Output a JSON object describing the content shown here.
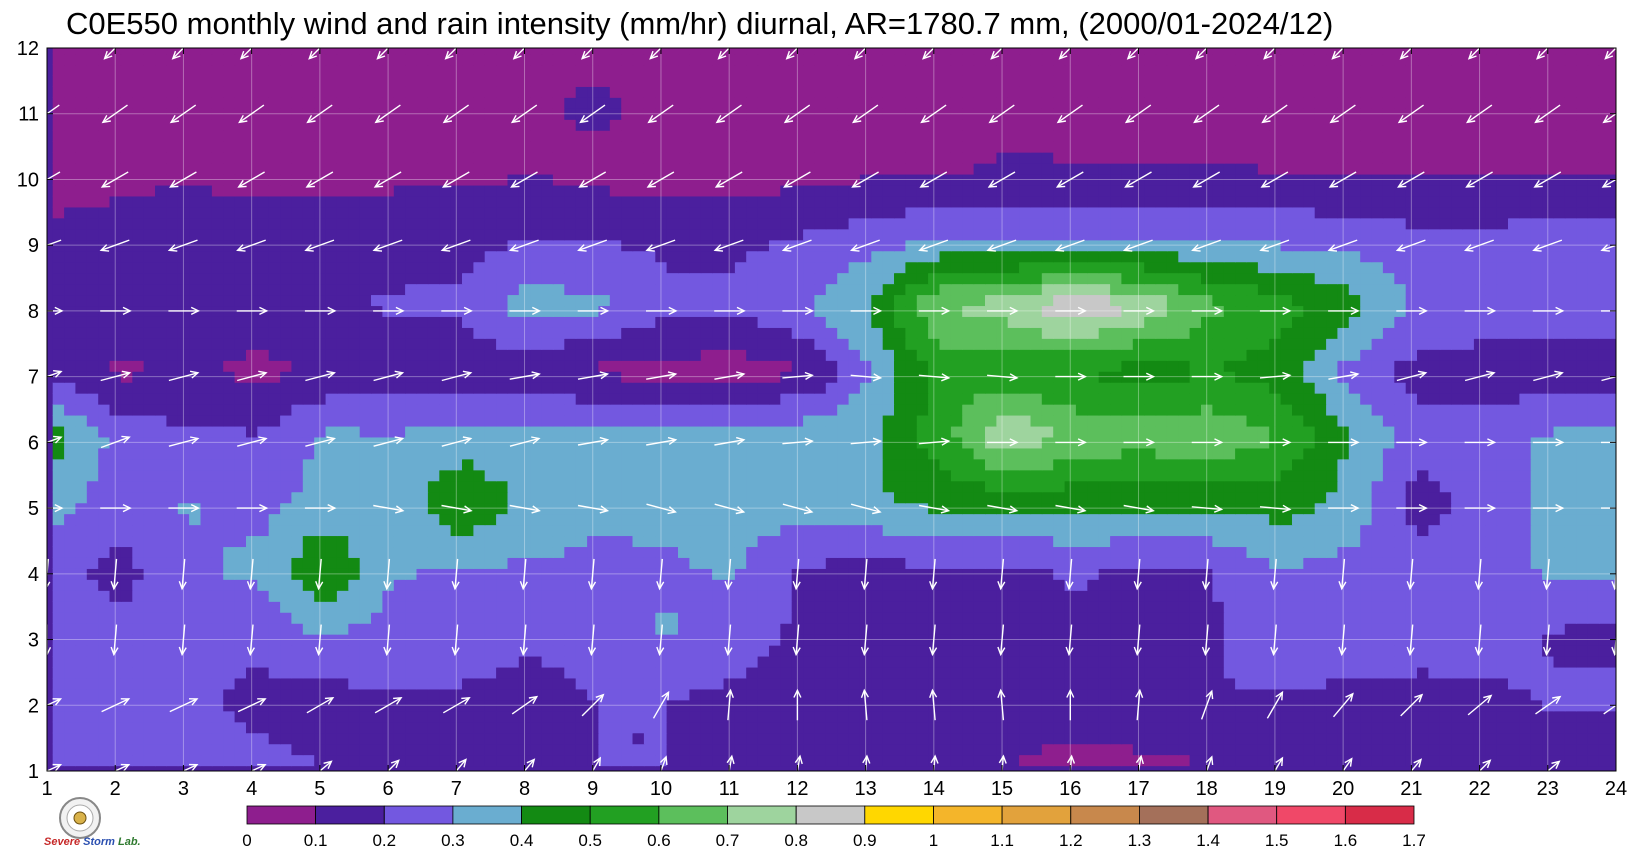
{
  "chart_data": {
    "type": "contour",
    "title": "C0E550 monthly wind and rain intensity (mm/hr) diurnal, AR=1780.7 mm, (2000/01-2024/12)",
    "xlim": [
      1,
      24
    ],
    "ylim": [
      1,
      12
    ],
    "x_ticks": [
      "1",
      "2",
      "3",
      "4",
      "5",
      "6",
      "7",
      "8",
      "9",
      "10",
      "11",
      "12",
      "13",
      "14",
      "15",
      "16",
      "17",
      "18",
      "19",
      "20",
      "21",
      "22",
      "23",
      "24"
    ],
    "y_ticks": [
      "1",
      "2",
      "3",
      "4",
      "5",
      "6",
      "7",
      "8",
      "9",
      "10",
      "11",
      "12"
    ],
    "grid": true,
    "colorbar": {
      "placement": "bottom",
      "levels": [
        "0",
        "0.1",
        "0.2",
        "0.3",
        "0.4",
        "0.5",
        "0.6",
        "0.7",
        "0.8",
        "0.9",
        "1",
        "1.1",
        "1.2",
        "1.3",
        "1.4",
        "1.5",
        "1.6",
        "1.7"
      ],
      "colors": [
        "#8e1e8e",
        "#4b1f9e",
        "#7358e0",
        "#6aadd0",
        "#138a13",
        "#22a022",
        "#5cbf5c",
        "#9ed49e",
        "#c8c8c8",
        "#ffd700",
        "#f4b52a",
        "#e2a23c",
        "#c8884c",
        "#a4705a",
        "#e05880",
        "#f04868",
        "#d82c48"
      ]
    },
    "contour_line_color": "#f5a623",
    "intensity_grid": [
      [
        0.2,
        0.21,
        0.22,
        0.22,
        0.2,
        0.19,
        0.19,
        0.19,
        0.2,
        0.2,
        0.2,
        0.2,
        0.19,
        0.15,
        0.1,
        0.06,
        0.08,
        0.1,
        0.1,
        0.1,
        0.11,
        0.12,
        0.12,
        0.12
      ],
      [
        0.24,
        0.28,
        0.22,
        0.18,
        0.16,
        0.19,
        0.18,
        0.16,
        0.2,
        0.2,
        0.18,
        0.16,
        0.15,
        0.16,
        0.17,
        0.16,
        0.17,
        0.2,
        0.18,
        0.17,
        0.17,
        0.18,
        0.21,
        0.22
      ],
      [
        0.25,
        0.22,
        0.22,
        0.22,
        0.31,
        0.25,
        0.26,
        0.22,
        0.25,
        0.31,
        0.24,
        0.18,
        0.16,
        0.16,
        0.18,
        0.18,
        0.18,
        0.18,
        0.3,
        0.27,
        0.24,
        0.25,
        0.19,
        0.18
      ],
      [
        0.23,
        0.17,
        0.28,
        0.33,
        0.5,
        0.31,
        0.29,
        0.29,
        0.28,
        0.29,
        0.31,
        0.19,
        0.17,
        0.19,
        0.19,
        0.21,
        0.19,
        0.2,
        0.3,
        0.27,
        0.26,
        0.26,
        0.32,
        0.33
      ],
      [
        0.35,
        0.24,
        0.31,
        0.26,
        0.34,
        0.33,
        0.5,
        0.37,
        0.32,
        0.32,
        0.32,
        0.36,
        0.38,
        0.43,
        0.43,
        0.44,
        0.44,
        0.44,
        0.44,
        0.37,
        0.15,
        0.23,
        0.34,
        0.32
      ],
      [
        0.45,
        0.26,
        0.22,
        0.21,
        0.32,
        0.31,
        0.34,
        0.32,
        0.35,
        0.35,
        0.38,
        0.37,
        0.38,
        0.55,
        0.8,
        0.66,
        0.65,
        0.68,
        0.6,
        0.4,
        0.25,
        0.26,
        0.32,
        0.32
      ],
      [
        0.16,
        0.08,
        0.12,
        0.07,
        0.12,
        0.14,
        0.14,
        0.14,
        0.08,
        0.07,
        0.05,
        0.09,
        0.3,
        0.55,
        0.52,
        0.5,
        0.45,
        0.5,
        0.45,
        0.27,
        0.16,
        0.15,
        0.12,
        0.12
      ],
      [
        0.19,
        0.18,
        0.19,
        0.17,
        0.19,
        0.21,
        0.22,
        0.35,
        0.32,
        0.22,
        0.22,
        0.29,
        0.42,
        0.7,
        0.75,
        0.9,
        0.78,
        0.62,
        0.54,
        0.44,
        0.29,
        0.26,
        0.28,
        0.3
      ],
      [
        0.11,
        0.12,
        0.14,
        0.14,
        0.14,
        0.16,
        0.17,
        0.2,
        0.2,
        0.18,
        0.18,
        0.21,
        0.25,
        0.3,
        0.3,
        0.3,
        0.3,
        0.3,
        0.28,
        0.26,
        0.23,
        0.23,
        0.25,
        0.25
      ],
      [
        0.08,
        0.09,
        0.09,
        0.08,
        0.08,
        0.08,
        0.08,
        0.1,
        0.07,
        0.06,
        0.06,
        0.07,
        0.09,
        0.09,
        0.12,
        0.11,
        0.11,
        0.11,
        0.1,
        0.1,
        0.1,
        0.09,
        0.09,
        0.09
      ],
      [
        0.06,
        0.06,
        0.06,
        0.06,
        0.06,
        0.06,
        0.07,
        0.08,
        0.12,
        0.06,
        0.06,
        0.06,
        0.06,
        0.06,
        0.06,
        0.06,
        0.06,
        0.06,
        0.06,
        0.06,
        0.06,
        0.06,
        0.06,
        0.06
      ],
      [
        0.07,
        0.07,
        0.1,
        0.1,
        0.07,
        0.07,
        0.07,
        0.07,
        0.07,
        0.07,
        0.07,
        0.07,
        0.07,
        0.07,
        0.07,
        0.07,
        0.07,
        0.07,
        0.07,
        0.07,
        0.07,
        0.07,
        0.07,
        0.07
      ]
    ],
    "wind_vectors_deg_from_east": [
      [
        25,
        25,
        25,
        25,
        40,
        45,
        50,
        50,
        60,
        70,
        80,
        80,
        85,
        85,
        85,
        85,
        80,
        70,
        60,
        55,
        50,
        45,
        40,
        35
      ],
      [
        25,
        25,
        25,
        25,
        30,
        30,
        30,
        35,
        45,
        60,
        85,
        90,
        95,
        95,
        95,
        90,
        85,
        70,
        60,
        50,
        45,
        40,
        35,
        35
      ],
      [
        -90,
        -95,
        -95,
        -95,
        -95,
        -95,
        -95,
        -95,
        -95,
        -95,
        -95,
        -95,
        -95,
        -95,
        -95,
        -95,
        -95,
        -95,
        -95,
        -95,
        -95,
        -95,
        -95,
        -95
      ],
      [
        -95,
        -95,
        -95,
        -95,
        -95,
        -95,
        -95,
        -95,
        -95,
        -95,
        -95,
        -95,
        -95,
        -95,
        -95,
        -95,
        -95,
        -95,
        -95,
        -95,
        -95,
        -95,
        -95,
        -95
      ],
      [
        0,
        0,
        0,
        0,
        0,
        -10,
        -10,
        -10,
        -10,
        -15,
        -15,
        -15,
        -15,
        -10,
        -10,
        -10,
        -10,
        -5,
        -5,
        0,
        0,
        0,
        0,
        0
      ],
      [
        20,
        20,
        15,
        15,
        15,
        15,
        15,
        15,
        10,
        10,
        10,
        5,
        5,
        5,
        0,
        0,
        0,
        0,
        0,
        0,
        0,
        0,
        0,
        0
      ],
      [
        20,
        15,
        15,
        15,
        15,
        15,
        15,
        10,
        10,
        10,
        10,
        5,
        -5,
        -5,
        -5,
        0,
        0,
        0,
        5,
        10,
        15,
        15,
        15,
        15
      ],
      [
        0,
        0,
        0,
        0,
        0,
        0,
        0,
        0,
        0,
        0,
        0,
        0,
        0,
        0,
        0,
        0,
        0,
        0,
        0,
        0,
        0,
        0,
        0,
        0
      ],
      [
        200,
        200,
        200,
        200,
        200,
        200,
        200,
        200,
        200,
        200,
        200,
        200,
        200,
        200,
        200,
        200,
        200,
        200,
        200,
        200,
        200,
        200,
        200,
        200
      ],
      [
        210,
        210,
        210,
        210,
        210,
        210,
        210,
        210,
        210,
        210,
        210,
        210,
        210,
        210,
        210,
        210,
        210,
        210,
        210,
        210,
        210,
        210,
        210,
        210
      ],
      [
        215,
        215,
        215,
        215,
        215,
        215,
        215,
        215,
        215,
        215,
        215,
        215,
        215,
        215,
        215,
        215,
        215,
        215,
        215,
        215,
        215,
        215,
        215,
        215
      ],
      [
        225,
        225,
        225,
        225,
        225,
        225,
        225,
        225,
        225,
        225,
        225,
        225,
        225,
        225,
        225,
        225,
        225,
        225,
        225,
        225,
        225,
        225,
        225,
        225
      ]
    ]
  },
  "logo": {
    "text_main": "Severe",
    "text_sub": "Storm",
    "text_lab": "Lab."
  }
}
